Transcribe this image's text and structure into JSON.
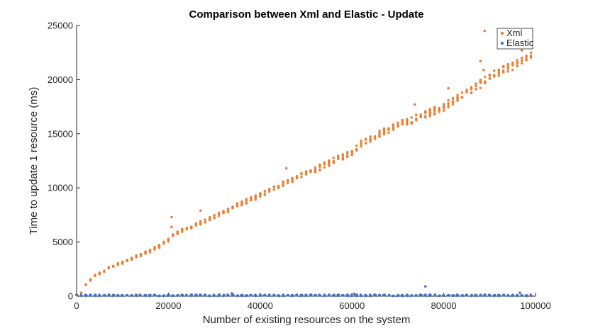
{
  "chart_data": {
    "type": "scatter",
    "title": "Comparison between Xml and Elastic - Update",
    "xlabel": "Number of existing resources on the system",
    "ylabel": "Time to update 1 resource (ms)",
    "xlim": [
      0,
      100000
    ],
    "ylim": [
      0,
      25000
    ],
    "xticks": [
      0,
      20000,
      40000,
      60000,
      80000,
      100000
    ],
    "yticks": [
      0,
      5000,
      10000,
      15000,
      20000,
      25000
    ],
    "grid": false,
    "legend_position": "top-right",
    "series": [
      {
        "name": "Xml",
        "color": "#ED7D31",
        "trend": {
          "x": [
            1000,
            2000,
            3000,
            4000,
            5000,
            6000,
            7000,
            8000,
            10000,
            12000,
            15000,
            18000,
            20000,
            22000,
            25000,
            27000,
            30000,
            35000,
            40000,
            45000,
            50000,
            55000,
            60000,
            62000,
            65000,
            70000,
            75000,
            80000,
            85000,
            88000,
            90000,
            95000,
            100000
          ],
          "y": [
            300,
            1000,
            1500,
            1900,
            2100,
            2300,
            2600,
            2800,
            3100,
            3500,
            4000,
            4600,
            5200,
            5900,
            6400,
            6800,
            7300,
            8400,
            9300,
            10400,
            11300,
            12300,
            13300,
            14100,
            14800,
            15800,
            16600,
            17500,
            18800,
            19600,
            20300,
            21200,
            22300
          ]
        },
        "outliers": [
          {
            "x": 20700,
            "y": 7300
          },
          {
            "x": 20700,
            "y": 6400
          },
          {
            "x": 27000,
            "y": 7900
          },
          {
            "x": 45700,
            "y": 11800
          },
          {
            "x": 73700,
            "y": 17700
          },
          {
            "x": 81000,
            "y": 19200
          },
          {
            "x": 88000,
            "y": 21700
          },
          {
            "x": 88900,
            "y": 24500
          },
          {
            "x": 88700,
            "y": 20900
          },
          {
            "x": 97000,
            "y": 22700
          },
          {
            "x": 98200,
            "y": 23100
          }
        ]
      },
      {
        "name": "Elastic",
        "color": "#4472C4",
        "baseline": 80,
        "outliers": [
          {
            "x": 76000,
            "y": 900
          },
          {
            "x": 96600,
            "y": 300
          },
          {
            "x": 33800,
            "y": 250
          },
          {
            "x": 60500,
            "y": 200
          }
        ]
      }
    ]
  }
}
